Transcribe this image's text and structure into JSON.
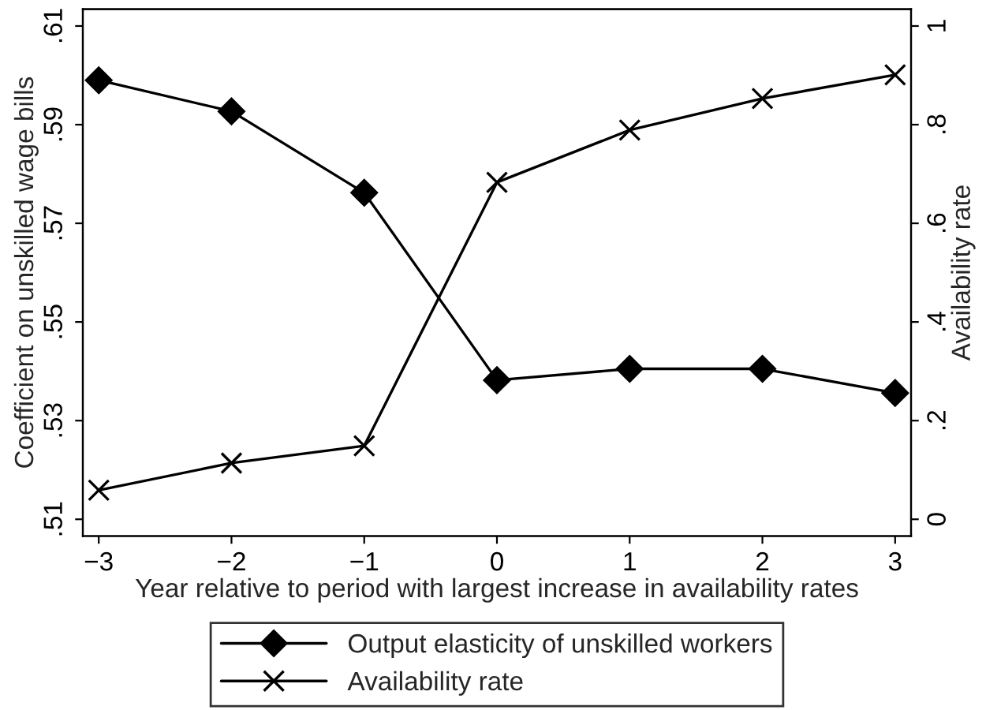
{
  "chart_data": {
    "type": "line",
    "xlabel": "Year relative to period with largest increase in availability rates",
    "ylabel": "Coefficient on unskilled wage bills",
    "y2label": "Availability rate",
    "x": [
      -3,
      -2,
      -1,
      0,
      1,
      2,
      3
    ],
    "series": [
      {
        "name": "Output elasticity of unskilled workers",
        "color": "#000000",
        "marker": "diamond",
        "values": [
          0.599,
          0.5927,
          0.5762,
          0.5382,
          0.5405,
          0.5405,
          0.5356
        ]
      },
      {
        "name": "Availability rate",
        "color": "#000000",
        "marker": "cross",
        "axis": "y2",
        "values": [
          0.059,
          0.114,
          0.149,
          0.683,
          0.789,
          0.853,
          0.901
        ]
      }
    ],
    "xlim": [
      -3.12,
      3.12
    ],
    "xticks": [
      {
        "value": -3,
        "label": "−3"
      },
      {
        "value": -2,
        "label": "−2"
      },
      {
        "value": -1,
        "label": "−1"
      },
      0,
      1,
      2,
      3
    ],
    "ylim": [
      0.5066,
      0.6134
    ],
    "yticks": [
      {
        "value": 0.51,
        "label": ".51"
      },
      {
        "value": 0.53,
        "label": ".53"
      },
      {
        "value": 0.55,
        "label": ".55"
      },
      {
        "value": 0.57,
        "label": ".57"
      },
      {
        "value": 0.59,
        "label": ".59"
      },
      {
        "value": 0.61,
        "label": ".61"
      }
    ],
    "y2lim": [
      -0.034,
      1.034
    ],
    "y2ticks": [
      0,
      {
        "value": 0.2,
        "label": ".2"
      },
      {
        "value": 0.4,
        "label": ".4"
      },
      {
        "value": 0.6,
        "label": ".6"
      },
      {
        "value": 0.8,
        "label": ".8"
      },
      1
    ],
    "grid": false,
    "legend": "bottom",
    "line_style": "solid"
  }
}
